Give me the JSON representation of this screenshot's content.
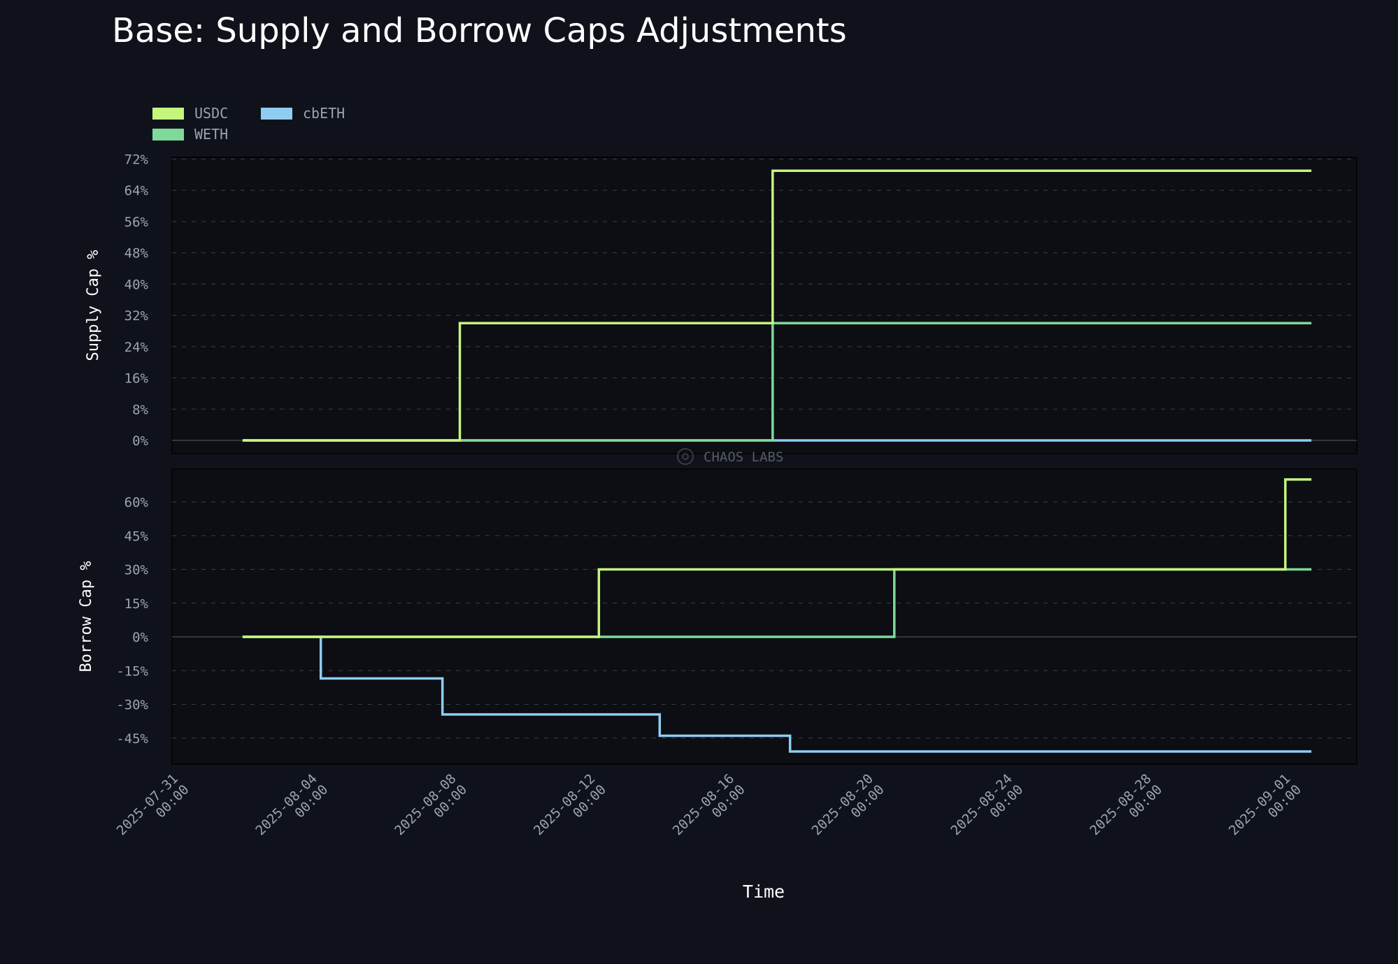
{
  "chart_data": {
    "type": "line",
    "title": "Base: Supply and Borrow Caps Adjustments",
    "xlabel": "Time",
    "watermark": "CHAOS LABS",
    "legend": {
      "placement": "top-left",
      "entries": [
        {
          "name": "USDC",
          "color": "#c6f57e"
        },
        {
          "name": "WETH",
          "color": "#7ed99a"
        },
        {
          "name": "cbETH",
          "color": "#8ecdf2"
        }
      ]
    },
    "x_ticks": [
      {
        "date": "2025-07-31",
        "time": "00:00"
      },
      {
        "date": "2025-08-04",
        "time": "00:00"
      },
      {
        "date": "2025-08-08",
        "time": "00:00"
      },
      {
        "date": "2025-08-12",
        "time": "00:00"
      },
      {
        "date": "2025-08-16",
        "time": "00:00"
      },
      {
        "date": "2025-08-20",
        "time": "00:00"
      },
      {
        "date": "2025-08-24",
        "time": "00:00"
      },
      {
        "date": "2025-08-28",
        "time": "00:00"
      },
      {
        "date": "2025-09-01",
        "time": "00:00"
      }
    ],
    "panels": [
      {
        "ylabel": "Supply Cap %",
        "ylim": [
          -4,
          72
        ],
        "yticks": [
          0,
          8,
          16,
          24,
          32,
          40,
          48,
          56,
          64,
          72
        ],
        "tick_labels": [
          "0%",
          "8%",
          "16%",
          "24%",
          "32%",
          "40%",
          "48%",
          "56%",
          "64%",
          "72%"
        ],
        "grid": true,
        "step_series": [
          {
            "name": "USDC",
            "color": "#c6f57e",
            "points": [
              [
                "2025-08-02",
                0
              ],
              [
                "2025-08-08 06:00",
                30
              ],
              [
                "2025-08-17 06:00",
                69
              ],
              [
                "2025-09-01 18:00",
                69
              ]
            ]
          },
          {
            "name": "WETH",
            "color": "#7ed99a",
            "points": [
              [
                "2025-08-02",
                0
              ],
              [
                "2025-08-17 06:00",
                30
              ],
              [
                "2025-09-01 18:00",
                30
              ]
            ]
          },
          {
            "name": "cbETH",
            "color": "#8ecdf2",
            "points": [
              [
                "2025-08-02",
                0
              ],
              [
                "2025-09-01 18:00",
                0
              ]
            ]
          }
        ]
      },
      {
        "ylabel": "Borrow Cap %",
        "ylim": [
          -57,
          70
        ],
        "yticks": [
          -45,
          -30,
          -15,
          0,
          15,
          30,
          45,
          60
        ],
        "tick_labels": [
          "-45%",
          "-30%",
          "-15%",
          "0%",
          "15%",
          "30%",
          "45%",
          "60%"
        ],
        "grid": true,
        "step_series": [
          {
            "name": "USDC",
            "color": "#c6f57e",
            "points": [
              [
                "2025-08-02",
                0
              ],
              [
                "2025-08-12 06:00",
                30
              ],
              [
                "2025-09-01 00:00",
                70
              ],
              [
                "2025-09-01 18:00",
                70
              ]
            ]
          },
          {
            "name": "WETH",
            "color": "#7ed99a",
            "points": [
              [
                "2025-08-02",
                0
              ],
              [
                "2025-08-20 18:00",
                30
              ],
              [
                "2025-09-01 18:00",
                30
              ]
            ]
          },
          {
            "name": "cbETH",
            "color": "#8ecdf2",
            "points": [
              [
                "2025-08-02",
                0
              ],
              [
                "2025-08-04 06:00",
                -18.5
              ],
              [
                "2025-08-07 18:00",
                -34.5
              ],
              [
                "2025-08-14 00:00",
                -44
              ],
              [
                "2025-08-17 18:00",
                -51
              ],
              [
                "2025-09-01 18:00",
                -51
              ]
            ]
          }
        ]
      }
    ]
  }
}
